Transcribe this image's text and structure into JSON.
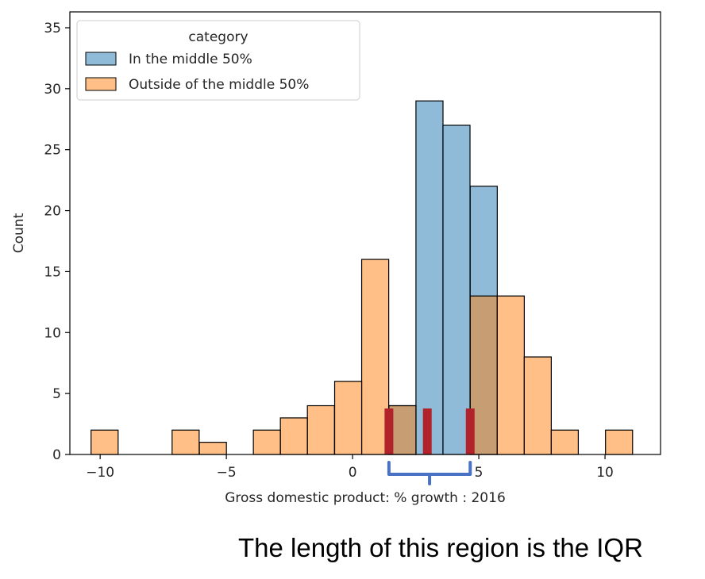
{
  "chart_data": {
    "type": "bar",
    "xlabel": "Gross domestic product: % growth : 2016",
    "ylabel": "Count",
    "xlim": [
      -11.2,
      12.2
    ],
    "ylim": [
      0,
      36.3
    ],
    "x_ticks": [
      -10,
      -5,
      0,
      5,
      10
    ],
    "x_tick_labels": [
      "−10",
      "−5",
      "0",
      "5",
      "10"
    ],
    "y_ticks": [
      0,
      5,
      10,
      15,
      20,
      25,
      30,
      35
    ],
    "y_tick_labels": [
      "0",
      "5",
      "10",
      "15",
      "20",
      "25",
      "30",
      "35"
    ],
    "bin_width": 1.072,
    "legend": {
      "title": "category",
      "placement": "top-left"
    },
    "series": [
      {
        "name": "In the middle 50%",
        "color": "#1f77b4",
        "bins": [
          {
            "x0": 1.44,
            "count": 4
          },
          {
            "x0": 2.51,
            "count": 29
          },
          {
            "x0": 3.58,
            "count": 27
          },
          {
            "x0": 4.66,
            "count": 22
          }
        ]
      },
      {
        "name": "Outside of the middle 50%",
        "color": "#ff7f0e",
        "bins": [
          {
            "x0": -10.36,
            "count": 2
          },
          {
            "x0": -7.15,
            "count": 2
          },
          {
            "x0": -6.07,
            "count": 1
          },
          {
            "x0": -3.93,
            "count": 2
          },
          {
            "x0": -2.86,
            "count": 3
          },
          {
            "x0": -1.79,
            "count": 4
          },
          {
            "x0": -0.71,
            "count": 6
          },
          {
            "x0": 0.36,
            "count": 16
          },
          {
            "x0": 1.44,
            "count": 4
          },
          {
            "x0": 4.66,
            "count": 13
          },
          {
            "x0": 5.73,
            "count": 13
          },
          {
            "x0": 6.8,
            "count": 8
          },
          {
            "x0": 7.87,
            "count": 2
          },
          {
            "x0": 10.02,
            "count": 2
          }
        ]
      }
    ],
    "quartile_markers": [
      1.44,
      2.96,
      4.66
    ],
    "marker_color": "#b2222a",
    "bracket": {
      "x0": 1.44,
      "x1": 4.66,
      "color": "#4a72c4"
    }
  },
  "annotation": "The length of this region is the IQR"
}
